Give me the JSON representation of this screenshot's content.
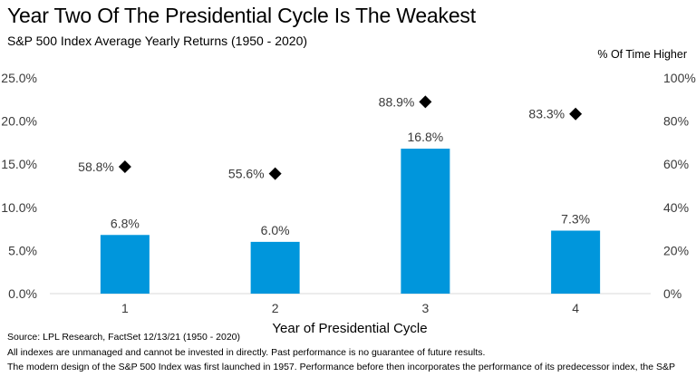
{
  "title": "Year Two Of The Presidential Cycle Is The Weakest",
  "subtitle": "S&P 500 Index Average Yearly Returns (1950 - 2020)",
  "right_axis_label": "% Of Time Higher",
  "footnotes": [
    "Source: LPL Research, FactSet 12/13/21 (1950 - 2020)",
    "All indexes are unmanaged and cannot be invested in directly. Past performance is no guarantee of future results.",
    "The modern design of the S&P 500 Index was first launched in 1957. Performance before then incorporates the performance of its  predecessor index, the S&P"
  ],
  "chart_data": {
    "type": "bar",
    "xlabel": "Year of Presidential Cycle",
    "categories": [
      "1",
      "2",
      "3",
      "4"
    ],
    "series": [
      {
        "axis": "left",
        "mark": "bar",
        "values": [
          6.8,
          6.0,
          16.8,
          7.3
        ],
        "labels": [
          "6.8%",
          "6.0%",
          "16.8%",
          "7.3%"
        ],
        "color": "#0096dc"
      },
      {
        "axis": "right",
        "mark": "diamond",
        "values": [
          58.8,
          55.6,
          88.9,
          83.3
        ],
        "labels": [
          "58.8%",
          "55.6%",
          "88.9%",
          "83.3%"
        ],
        "color": "#000000"
      }
    ],
    "y_left": {
      "ylim": [
        0,
        25
      ],
      "ticks": [
        "0.0%",
        "5.0%",
        "10.0%",
        "15.0%",
        "20.0%",
        "25.0%"
      ]
    },
    "y_right": {
      "ylim": [
        0,
        100
      ],
      "ticks": [
        "0%",
        "20%",
        "40%",
        "60%",
        "80%",
        "100%"
      ]
    },
    "grid": false,
    "legend": "none"
  }
}
